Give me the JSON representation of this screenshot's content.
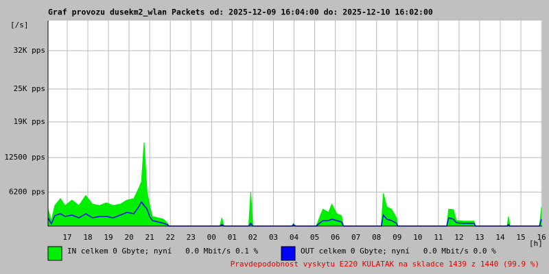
{
  "chart_data": {
    "type": "area",
    "title": "Graf provozu dusekm2_wlan Packets od: 2025-12-09 16:04:00 do: 2025-12-10 16:02:00",
    "y_unit_label": "[/s]",
    "x_unit_label": "[h]",
    "xlim": [
      16.07,
      40.03
    ],
    "ylim": [
      0,
      37500
    ],
    "grid": true,
    "xticks": [
      17,
      18,
      19,
      20,
      21,
      22,
      23,
      {
        "value": 24,
        "label": "00"
      },
      {
        "value": 25,
        "label": "01"
      },
      {
        "value": 26,
        "label": "02"
      },
      {
        "value": 27,
        "label": "03"
      },
      {
        "value": 28,
        "label": "04"
      },
      {
        "value": 29,
        "label": "05"
      },
      {
        "value": 30,
        "label": "06"
      },
      {
        "value": 31,
        "label": "07"
      },
      {
        "value": 32,
        "label": "08"
      },
      {
        "value": 33,
        "label": "09"
      },
      {
        "value": 34,
        "label": "10"
      },
      {
        "value": 35,
        "label": "11"
      },
      {
        "value": 36,
        "label": "12"
      },
      {
        "value": 37,
        "label": "13"
      },
      {
        "value": 38,
        "label": "14"
      },
      {
        "value": 39,
        "label": "15"
      },
      {
        "value": 40,
        "label": "16"
      }
    ],
    "yticks": [
      {
        "value": 6200,
        "label": "6200 pps"
      },
      {
        "value": 12500,
        "label": "12500 pps"
      },
      {
        "value": 19000,
        "label": "19K pps"
      },
      {
        "value": 25000,
        "label": "25K pps"
      },
      {
        "value": 32000,
        "label": "32K pps"
      }
    ],
    "x": [
      16.07,
      16.23,
      16.4,
      16.67,
      16.9,
      17.23,
      17.57,
      17.9,
      18.23,
      18.57,
      18.9,
      19.23,
      19.57,
      19.9,
      20.23,
      20.47,
      20.6,
      20.73,
      20.87,
      21.0,
      21.13,
      21.4,
      21.67,
      21.87,
      21.93,
      24.4,
      24.5,
      24.6,
      25.8,
      25.9,
      26.0,
      27.9,
      27.97,
      28.07,
      29.07,
      29.23,
      29.4,
      29.67,
      29.83,
      30.07,
      30.3,
      30.4,
      32.23,
      32.33,
      32.5,
      32.73,
      32.97,
      33.03,
      35.4,
      35.5,
      35.73,
      35.87,
      36.23,
      36.73,
      36.8,
      38.33,
      38.4,
      38.47,
      39.9,
      40.0
    ],
    "series": [
      {
        "name": "IN celkem 0 Gbyte; nyní   0.0 Mbit/s 0.1 %",
        "color": "#00ee00",
        "fill": true,
        "values": [
          3100,
          1000,
          3750,
          5000,
          3750,
          4750,
          3750,
          5600,
          4000,
          3750,
          4250,
          3750,
          4000,
          4750,
          5000,
          6900,
          8100,
          15250,
          6500,
          3750,
          1750,
          1500,
          1250,
          500,
          0,
          0,
          1500,
          0,
          0,
          6250,
          0,
          0,
          500,
          0,
          0,
          1500,
          3100,
          2500,
          4000,
          2250,
          1900,
          0,
          0,
          6000,
          3500,
          3100,
          1500,
          0,
          0,
          3100,
          3000,
          1000,
          900,
          900,
          0,
          0,
          1750,
          0,
          0,
          3500
        ]
      },
      {
        "name": "OUT celkem 0 Gbyte; nyní   0.0 Mbit/s 0.0 %",
        "color": "#0000ff",
        "fill": false,
        "values": [
          1500,
          400,
          1900,
          2250,
          1750,
          2000,
          1500,
          2250,
          1500,
          1750,
          1750,
          1500,
          2000,
          2500,
          2250,
          3500,
          4400,
          3750,
          3100,
          1750,
          1000,
          750,
          500,
          250,
          0,
          0,
          250,
          0,
          0,
          500,
          0,
          0,
          250,
          0,
          0,
          500,
          1000,
          1000,
          1250,
          1000,
          750,
          0,
          0,
          2000,
          1250,
          1000,
          500,
          0,
          0,
          1500,
          1250,
          600,
          500,
          500,
          0,
          0,
          250,
          0,
          0,
          1250
        ]
      }
    ],
    "footnote": "Pravdepodobnost vyskytu E220 KULATAK na skladce 1439 z 1440 (99.9 %)"
  }
}
